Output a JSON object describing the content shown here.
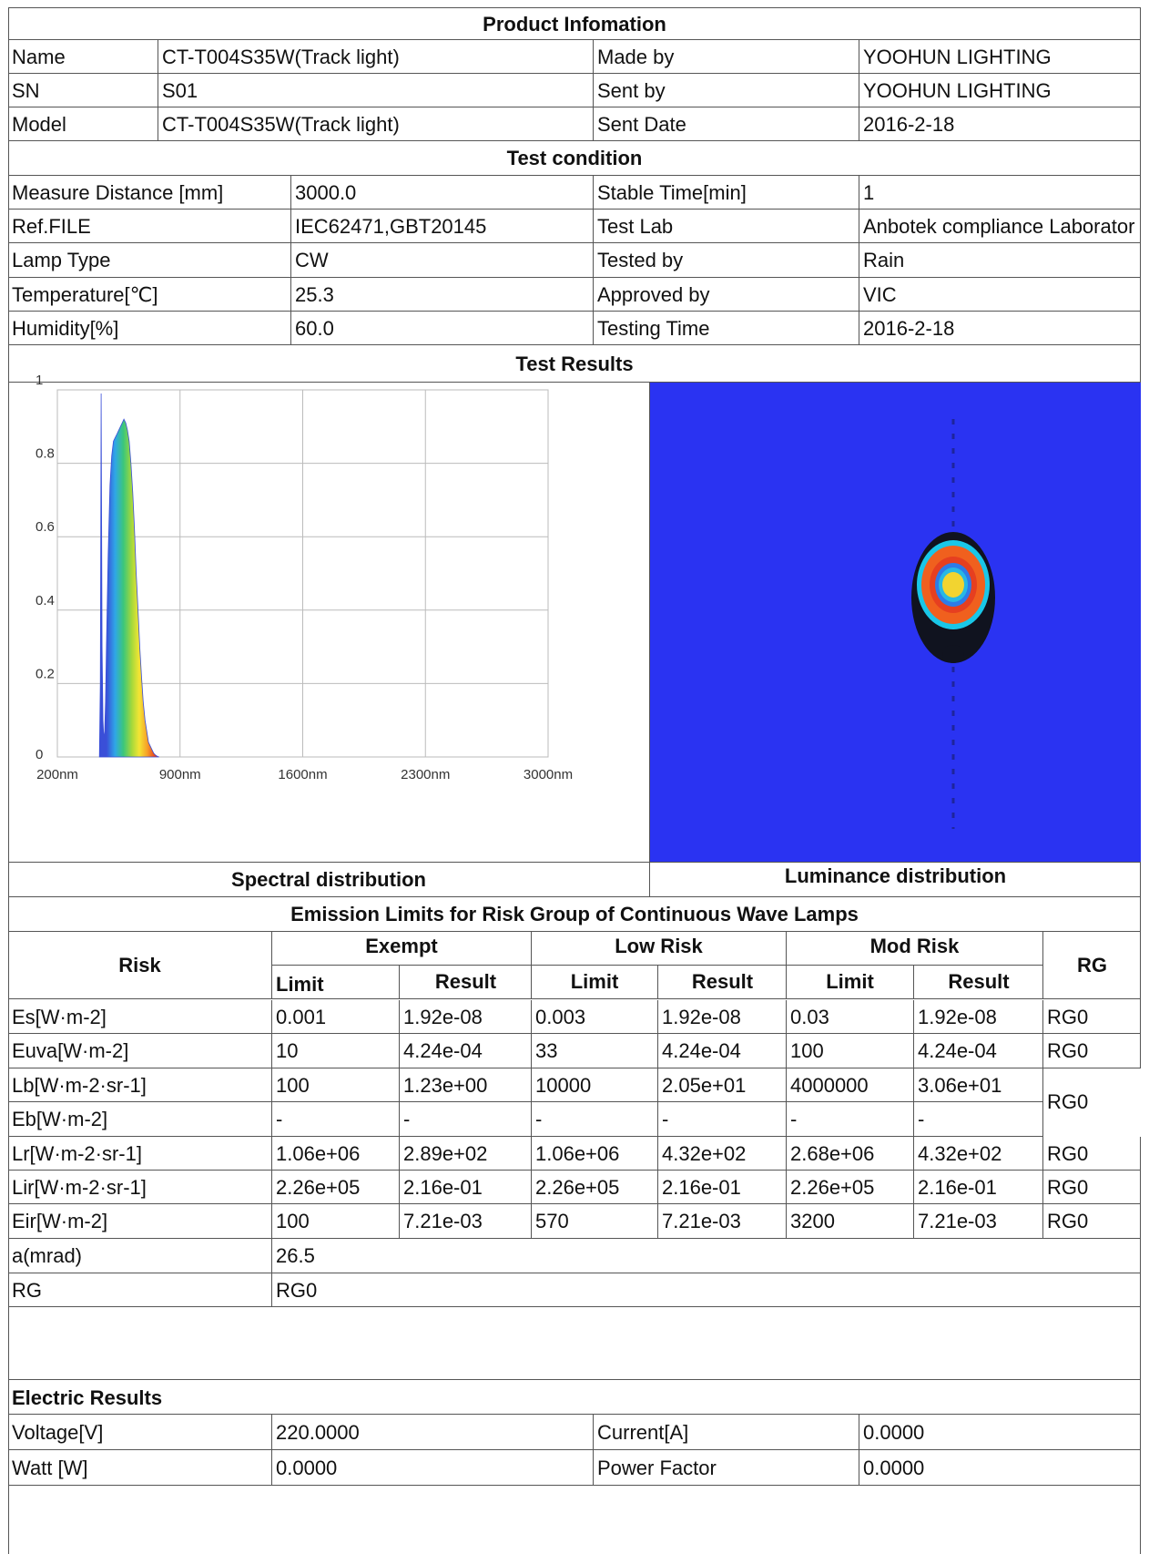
{
  "product_info": {
    "title": "Product Infomation",
    "rows": [
      {
        "label": "Name",
        "value": "CT-T004S35W(Track light)",
        "label2": "Made by",
        "value2": "YOOHUN LIGHTING"
      },
      {
        "label": "SN",
        "value": "S01",
        "label2": "Sent by",
        "value2": "YOOHUN LIGHTING"
      },
      {
        "label": "Model",
        "value": "CT-T004S35W(Track light)",
        "label2": "Sent Date",
        "value2": "2016-2-18"
      }
    ]
  },
  "test_condition": {
    "title": "Test condition",
    "rows": [
      {
        "label": "Measure Distance [mm]",
        "value": "3000.0",
        "label2": "Stable Time[min]",
        "value2": "1"
      },
      {
        "label": "Ref.FILE",
        "value": "IEC62471,GBT20145",
        "label2": "Test Lab",
        "value2": "Anbotek compliance Laborator"
      },
      {
        "label": "Lamp Type",
        "value": "CW",
        "label2": "Tested by",
        "value2": "Rain"
      },
      {
        "label": "Temperature[℃]",
        "value": "25.3",
        "label2": "Approved by",
        "value2": "VIC"
      },
      {
        "label": "Humidity[%]",
        "value": "60.0",
        "label2": "Testing Time",
        "value2": "2016-2-18"
      }
    ]
  },
  "test_results": {
    "title": "Test Results",
    "spectral_caption": "Spectral distribution",
    "luminance_caption": "Luminance distribution"
  },
  "chart_data": {
    "type": "area",
    "title": "",
    "xlabel": "",
    "ylabel": "",
    "x_ticks": [
      "200nm",
      "900nm",
      "1600nm",
      "2300nm",
      "3000nm"
    ],
    "y_ticks": [
      "0",
      "0.2",
      "0.4",
      "0.6",
      "0.8",
      "1"
    ],
    "xlim": [
      200,
      3000
    ],
    "ylim": [
      0,
      1
    ],
    "grid": true,
    "series": [
      {
        "x": [
          440,
          445,
          450,
          455,
          460,
          465,
          470,
          475,
          480,
          490,
          500,
          510,
          520,
          530,
          540,
          550,
          560,
          570,
          580,
          590,
          600,
          610,
          620,
          630,
          640,
          650,
          660,
          670,
          680,
          690,
          700,
          710,
          720,
          730,
          740,
          750,
          760,
          770,
          780
        ],
        "y": [
          0.0,
          0.2,
          0.99,
          0.3,
          0.1,
          0.05,
          0.07,
          0.15,
          0.3,
          0.55,
          0.74,
          0.82,
          0.86,
          0.87,
          0.88,
          0.89,
          0.9,
          0.91,
          0.92,
          0.91,
          0.89,
          0.86,
          0.8,
          0.72,
          0.62,
          0.5,
          0.4,
          0.3,
          0.22,
          0.15,
          0.1,
          0.07,
          0.04,
          0.03,
          0.02,
          0.01,
          0.005,
          0.002,
          0.0
        ]
      }
    ]
  },
  "emission": {
    "title": "Emission Limits for Risk Group of Continuous Wave Lamps",
    "risk_header": "Risk",
    "rg_header": "RG",
    "groups": [
      "Exempt",
      "Low Risk",
      "Mod Risk"
    ],
    "limit_label": "Limit",
    "result_label": "Result",
    "rows": [
      {
        "risk": "Es[W·m-2]",
        "vals": [
          "0.001",
          "1.92e-08",
          "0.003",
          "1.92e-08",
          "0.03",
          "1.92e-08"
        ],
        "rg": "RG0"
      },
      {
        "risk": "Euva[W·m-2]",
        "vals": [
          "10",
          "4.24e-04",
          "33",
          "4.24e-04",
          "100",
          "4.24e-04"
        ],
        "rg": "RG0"
      },
      {
        "risk": "Lb[W·m-2·sr-1]",
        "vals": [
          "100",
          "1.23e+00",
          "10000",
          "2.05e+01",
          "4000000",
          "3.06e+01"
        ],
        "rg": "RG0"
      },
      {
        "risk": "Eb[W·m-2]",
        "vals": [
          "-",
          "-",
          "-",
          "-",
          "-",
          "-"
        ],
        "rg": ""
      },
      {
        "risk": "Lr[W·m-2·sr-1]",
        "vals": [
          "1.06e+06",
          "2.89e+02",
          "1.06e+06",
          "4.32e+02",
          "2.68e+06",
          "4.32e+02"
        ],
        "rg": "RG0"
      },
      {
        "risk": "Lir[W·m-2·sr-1]",
        "vals": [
          "2.26e+05",
          "2.16e-01",
          "2.26e+05",
          "2.16e-01",
          "2.26e+05",
          "2.16e-01"
        ],
        "rg": "RG0"
      },
      {
        "risk": "Eir[W·m-2]",
        "vals": [
          "100",
          "7.21e-03",
          "570",
          "7.21e-03",
          "3200",
          "7.21e-03"
        ],
        "rg": "RG0"
      }
    ],
    "a_label": "a(mrad)",
    "a_value": "26.5",
    "rg_label": "RG",
    "rg_value": "RG0"
  },
  "electric": {
    "title": "Electric Results",
    "voltage_label": "Voltage[V]",
    "voltage_value": "220.0000",
    "current_label": "Current[A]",
    "current_value": "0.0000",
    "watt_label": "Watt [W]",
    "watt_value": "0.0000",
    "pf_label": "Power Factor",
    "pf_value": "0.0000"
  }
}
